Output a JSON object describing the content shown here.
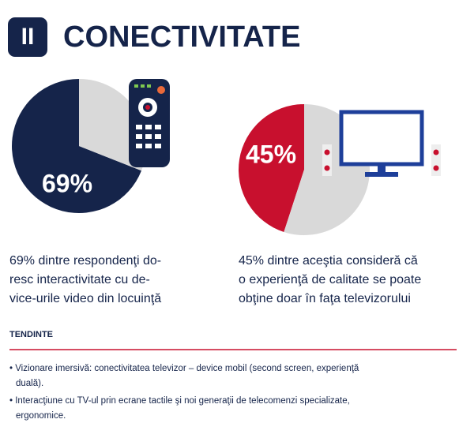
{
  "header": {
    "badge": "II",
    "title": "CONECTIVITATE"
  },
  "chart_data": [
    {
      "type": "pie",
      "values": [
        69,
        31
      ],
      "value_labels": [
        "69%",
        null
      ],
      "colors": [
        "#15244a",
        "#d9d9d9"
      ]
    },
    {
      "type": "pie",
      "values": [
        45,
        55
      ],
      "value_labels": [
        "45%",
        null
      ],
      "colors": [
        "#c8102e",
        "#d9d9d9"
      ]
    }
  ],
  "captions": [
    {
      "lines": [
        "69% dintre respondenţi do-",
        "resc interactivitate cu de-",
        "vice-urile video din locuinţă"
      ]
    },
    {
      "lines": [
        "45% dintre aceştia consideră că",
        "o experienţă de calitate se poate",
        "obţine doar în faţa televizorului"
      ]
    }
  ],
  "section": {
    "title": "TENDINTE",
    "lines": [
      "• Vizionare imersivă: conectivitatea televizor – device mobil (second screen, experienţă",
      "duală).",
      "• Interacţiune cu TV-ul prin ecrane tactile şi noi generaţii de telecomenzi specializate,",
      "ergonomice."
    ]
  }
}
